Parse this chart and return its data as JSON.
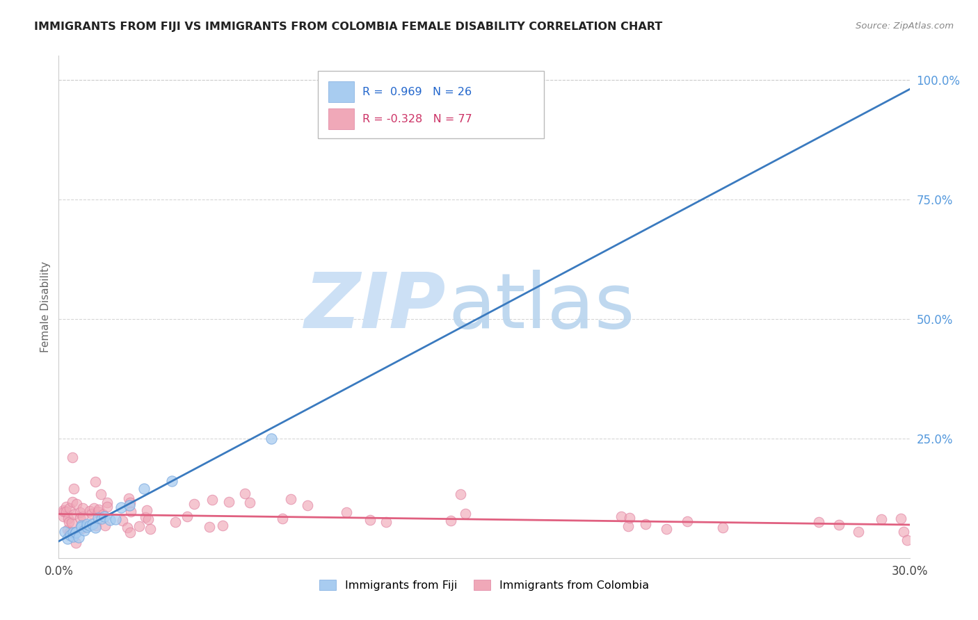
{
  "title": "IMMIGRANTS FROM FIJI VS IMMIGRANTS FROM COLOMBIA FEMALE DISABILITY CORRELATION CHART",
  "source": "Source: ZipAtlas.com",
  "ylabel": "Female Disability",
  "xlim": [
    0.0,
    0.3
  ],
  "ylim": [
    0.0,
    1.05
  ],
  "fiji_R": 0.969,
  "fiji_N": 26,
  "colombia_R": -0.328,
  "colombia_N": 77,
  "fiji_color": "#a8ccf0",
  "colombia_color": "#f0a8b8",
  "fiji_line_color": "#3a7abf",
  "colombia_line_color": "#e06080",
  "fiji_edge_color": "#7aaae0",
  "colombia_edge_color": "#e080a0",
  "background_color": "#ffffff",
  "fiji_slope": 3.15,
  "fiji_intercept": 0.035,
  "colombia_slope": -0.075,
  "colombia_intercept": 0.092,
  "watermark_zip_color": "#cce0f5",
  "watermark_atlas_color": "#b8d4ee"
}
